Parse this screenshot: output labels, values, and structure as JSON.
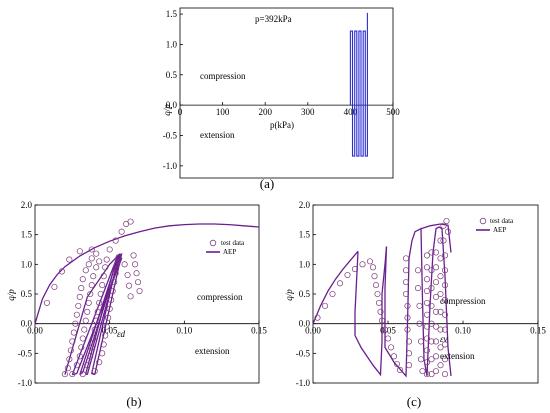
{
  "colors": {
    "path": "#2b2bd6",
    "model": "#6a1f8f",
    "marker": "#7a3a7a",
    "axis": "#000000"
  },
  "panels": {
    "a": {
      "label": "(a)",
      "title": "p=392kPa",
      "compression": "compression",
      "extension": "extension",
      "ylabel": "q/p",
      "xlabel": "p(kPa)"
    },
    "b": {
      "label": "(b)",
      "compression": "compression",
      "extension": "extension",
      "ylabel": "q/p",
      "strain_label": "εd",
      "legend": {
        "test": "test data",
        "model": "AEP"
      }
    },
    "c": {
      "label": "(c)",
      "compression": "compression",
      "extension": "extension",
      "ylabel": "q/p",
      "strain_label": "εv",
      "legend": {
        "test": "test data",
        "model": "AEP"
      }
    }
  },
  "chart_data": [
    {
      "id": "a",
      "type": "line",
      "title": "p=392kPa",
      "xlabel": "p(kPa)",
      "ylabel": "q/p",
      "xlim": [
        0,
        500
      ],
      "ylim": [
        -1.2,
        1.6
      ],
      "xticks": [
        0,
        100,
        200,
        300,
        400,
        500
      ],
      "yticks": [
        -1.0,
        -0.5,
        0.0,
        0.5,
        1.0,
        1.5
      ],
      "series": [
        {
          "x": [
            400,
            400,
            405,
            405,
            410,
            410,
            415,
            415,
            420,
            420,
            425,
            425,
            430,
            430,
            435,
            435,
            440,
            440
          ],
          "y": [
            0,
            1.22,
            1.22,
            -0.84,
            -0.84,
            1.22,
            1.22,
            -0.84,
            -0.84,
            1.22,
            1.22,
            -0.84,
            -0.84,
            1.22,
            1.22,
            -0.84,
            -0.84,
            1.52
          ]
        }
      ]
    },
    {
      "id": "b",
      "type": "scatter",
      "xlabel": "εd",
      "ylabel": "q/p",
      "xlim": [
        0,
        0.15
      ],
      "ylim": [
        -1.0,
        2.0
      ],
      "xticks": [
        0.0,
        0.05,
        0.1,
        0.15
      ],
      "yticks": [
        -1.0,
        -0.5,
        0.0,
        0.5,
        1.0,
        1.5,
        2.0
      ],
      "legend": [
        "test data",
        "AEP"
      ],
      "series": [
        {
          "name": "test data",
          "points": [
            [
              0.02,
              -0.85
            ],
            [
              0.022,
              -0.75
            ],
            [
              0.023,
              -0.6
            ],
            [
              0.024,
              -0.45
            ],
            [
              0.025,
              -0.3
            ],
            [
              0.026,
              -0.15
            ],
            [
              0.027,
              0.0
            ],
            [
              0.028,
              0.15
            ],
            [
              0.029,
              0.3
            ],
            [
              0.03,
              0.45
            ],
            [
              0.031,
              0.6
            ],
            [
              0.032,
              0.75
            ],
            [
              0.034,
              0.9
            ],
            [
              0.036,
              1.0
            ],
            [
              0.038,
              1.1
            ],
            [
              0.041,
              1.18
            ],
            [
              0.025,
              -0.85
            ],
            [
              0.028,
              -0.7
            ],
            [
              0.03,
              -0.55
            ],
            [
              0.031,
              -0.4
            ],
            [
              0.032,
              -0.25
            ],
            [
              0.033,
              -0.1
            ],
            [
              0.034,
              0.05
            ],
            [
              0.035,
              0.2
            ],
            [
              0.036,
              0.35
            ],
            [
              0.037,
              0.5
            ],
            [
              0.038,
              0.65
            ],
            [
              0.039,
              0.8
            ],
            [
              0.041,
              0.95
            ],
            [
              0.043,
              1.05
            ],
            [
              0.032,
              -0.85
            ],
            [
              0.035,
              -0.7
            ],
            [
              0.037,
              -0.55
            ],
            [
              0.038,
              -0.4
            ],
            [
              0.039,
              -0.25
            ],
            [
              0.04,
              -0.1
            ],
            [
              0.041,
              0.05
            ],
            [
              0.042,
              0.2
            ],
            [
              0.043,
              0.35
            ],
            [
              0.044,
              0.5
            ],
            [
              0.045,
              0.65
            ],
            [
              0.046,
              0.8
            ],
            [
              0.047,
              0.95
            ],
            [
              0.048,
              1.08
            ],
            [
              0.04,
              -0.8
            ],
            [
              0.043,
              -0.65
            ],
            [
              0.045,
              -0.5
            ],
            [
              0.046,
              -0.35
            ],
            [
              0.047,
              -0.2
            ],
            [
              0.048,
              -0.05
            ],
            [
              0.049,
              0.1
            ],
            [
              0.05,
              0.25
            ],
            [
              0.051,
              0.4
            ],
            [
              0.052,
              0.55
            ],
            [
              0.053,
              0.7
            ],
            [
              0.054,
              0.85
            ],
            [
              0.055,
              1.0
            ],
            [
              0.056,
              1.12
            ],
            [
              0.05,
              1.25
            ],
            [
              0.054,
              1.4
            ],
            [
              0.058,
              1.55
            ],
            [
              0.061,
              1.68
            ],
            [
              0.064,
              1.72
            ],
            [
              0.066,
              1.15
            ],
            [
              0.067,
              1.0
            ],
            [
              0.068,
              0.85
            ],
            [
              0.069,
              0.7
            ],
            [
              0.07,
              0.55
            ],
            [
              0.008,
              0.35
            ],
            [
              0.013,
              0.62
            ],
            [
              0.018,
              0.88
            ],
            [
              0.023,
              1.08
            ],
            [
              0.03,
              1.22
            ],
            [
              0.038,
              1.25
            ],
            [
              0.06,
              1.0
            ],
            [
              0.062,
              0.82
            ],
            [
              0.063,
              0.64
            ],
            [
              0.064,
              0.46
            ]
          ]
        },
        {
          "name": "AEP",
          "curves": [
            {
              "x": [
                0.0,
                0.005,
                0.01,
                0.015,
                0.02,
                0.03,
                0.04,
                0.05,
                0.06,
                0.07,
                0.08,
                0.09,
                0.1,
                0.11,
                0.12,
                0.13,
                0.14,
                0.15
              ],
              "y": [
                0.0,
                0.42,
                0.66,
                0.83,
                0.96,
                1.14,
                1.28,
                1.39,
                1.48,
                1.55,
                1.61,
                1.65,
                1.67,
                1.68,
                1.68,
                1.67,
                1.65,
                1.63
              ]
            },
            {
              "x": [
                0.025,
                0.055,
                0.058,
                0.028,
                0.025
              ],
              "y": [
                -0.86,
                1.12,
                1.1,
                -0.84,
                -0.86
              ]
            },
            {
              "x": [
                0.03,
                0.056,
                0.057,
                0.032,
                0.03
              ],
              "y": [
                -0.86,
                1.15,
                1.12,
                -0.82,
                -0.86
              ]
            },
            {
              "x": [
                0.035,
                0.057,
                0.055,
                0.034,
                0.035
              ],
              "y": [
                -0.86,
                1.16,
                1.13,
                -0.84,
                -0.86
              ]
            },
            {
              "x": [
                0.04,
                0.058,
                0.056,
                0.038,
                0.04
              ],
              "y": [
                -0.86,
                1.17,
                1.15,
                -0.84,
                -0.86
              ]
            },
            {
              "x": [
                0.02,
                0.035,
                0.05,
                0.057
              ],
              "y": [
                -0.86,
                0.45,
                1.0,
                1.18
              ]
            }
          ]
        }
      ]
    },
    {
      "id": "c",
      "type": "scatter",
      "xlabel": "εv",
      "ylabel": "q/p",
      "xlim": [
        0,
        0.15
      ],
      "ylim": [
        -1.0,
        2.0
      ],
      "xticks": [
        0.0,
        0.05,
        0.1,
        0.15
      ],
      "yticks": [
        -1.0,
        -0.5,
        0.0,
        0.5,
        1.0,
        1.5,
        2.0
      ],
      "legend": [
        "test data",
        "AEP"
      ],
      "series": [
        {
          "name": "test data",
          "points": [
            [
              0.003,
              0.1
            ],
            [
              0.008,
              0.3
            ],
            [
              0.013,
              0.5
            ],
            [
              0.018,
              0.68
            ],
            [
              0.023,
              0.82
            ],
            [
              0.028,
              0.92
            ],
            [
              0.033,
              1.0
            ],
            [
              0.038,
              1.05
            ],
            [
              0.04,
              0.95
            ],
            [
              0.041,
              0.8
            ],
            [
              0.042,
              0.65
            ],
            [
              0.043,
              0.5
            ],
            [
              0.044,
              0.35
            ],
            [
              0.045,
              0.2
            ],
            [
              0.046,
              0.05
            ],
            [
              0.048,
              -0.1
            ],
            [
              0.05,
              -0.25
            ],
            [
              0.052,
              -0.4
            ],
            [
              0.054,
              -0.55
            ],
            [
              0.056,
              -0.68
            ],
            [
              0.058,
              -0.78
            ],
            [
              0.062,
              1.1
            ],
            [
              0.062,
              0.9
            ],
            [
              0.062,
              0.7
            ],
            [
              0.062,
              0.5
            ],
            [
              0.063,
              0.3
            ],
            [
              0.063,
              0.1
            ],
            [
              0.063,
              -0.1
            ],
            [
              0.064,
              -0.3
            ],
            [
              0.064,
              -0.5
            ],
            [
              0.064,
              -0.7
            ],
            [
              0.07,
              0.9
            ],
            [
              0.07,
              0.6
            ],
            [
              0.071,
              0.3
            ],
            [
              0.071,
              0.0
            ],
            [
              0.072,
              -0.3
            ],
            [
              0.072,
              -0.6
            ],
            [
              0.073,
              -0.8
            ],
            [
              0.076,
              1.15
            ],
            [
              0.076,
              0.95
            ],
            [
              0.076,
              0.75
            ],
            [
              0.076,
              0.55
            ],
            [
              0.076,
              0.35
            ],
            [
              0.076,
              0.15
            ],
            [
              0.076,
              -0.05
            ],
            [
              0.076,
              -0.25
            ],
            [
              0.076,
              -0.45
            ],
            [
              0.076,
              -0.65
            ],
            [
              0.076,
              -0.85
            ],
            [
              0.079,
              1.2
            ],
            [
              0.079,
              0.9
            ],
            [
              0.079,
              0.6
            ],
            [
              0.079,
              0.3
            ],
            [
              0.079,
              0.0
            ],
            [
              0.079,
              -0.3
            ],
            [
              0.079,
              -0.6
            ],
            [
              0.079,
              -0.85
            ],
            [
              0.082,
              1.2
            ],
            [
              0.082,
              0.95
            ],
            [
              0.082,
              0.7
            ],
            [
              0.082,
              0.45
            ],
            [
              0.082,
              0.2
            ],
            [
              0.082,
              -0.05
            ],
            [
              0.082,
              -0.3
            ],
            [
              0.082,
              -0.55
            ],
            [
              0.082,
              -0.8
            ],
            [
              0.085,
              1.4
            ],
            [
              0.085,
              1.1
            ],
            [
              0.085,
              0.8
            ],
            [
              0.085,
              0.5
            ],
            [
              0.085,
              0.2
            ],
            [
              0.085,
              -0.1
            ],
            [
              0.085,
              -0.4
            ],
            [
              0.085,
              -0.7
            ],
            [
              0.087,
              1.65
            ],
            [
              0.087,
              1.4
            ],
            [
              0.088,
              1.15
            ],
            [
              0.088,
              0.9
            ],
            [
              0.088,
              0.65
            ],
            [
              0.088,
              0.4
            ],
            [
              0.088,
              0.15
            ],
            [
              0.088,
              -0.1
            ],
            [
              0.088,
              -0.35
            ],
            [
              0.088,
              -0.6
            ],
            [
              0.088,
              -0.85
            ],
            [
              0.089,
              1.73
            ],
            [
              0.09,
              1.55
            ]
          ]
        },
        {
          "name": "AEP",
          "curves": [
            {
              "x": [
                0.0,
                0.005,
                0.01,
                0.015,
                0.02,
                0.025,
                0.03
              ],
              "y": [
                0.0,
                0.3,
                0.55,
                0.75,
                0.92,
                1.07,
                1.22
              ]
            },
            {
              "x": [
                0.03,
                0.029,
                0.028,
                0.028,
                0.032,
                0.04,
                0.045,
                0.046,
                0.046
              ],
              "y": [
                1.22,
                0.7,
                0.2,
                -0.2,
                -0.4,
                -0.7,
                -0.86,
                -0.3,
                0.5
              ]
            },
            {
              "x": [
                0.046,
                0.048,
                0.049
              ],
              "y": [
                0.5,
                1.0,
                1.3
              ]
            },
            {
              "x": [
                0.049,
                0.048,
                0.048,
                0.054,
                0.062,
                0.063,
                0.064
              ],
              "y": [
                1.3,
                0.6,
                -0.4,
                -0.65,
                -0.88,
                0.0,
                1.1
              ]
            },
            {
              "x": [
                0.064,
                0.066,
                0.068,
                0.072,
                0.073,
                0.074,
                0.076,
                0.078,
                0.08,
                0.082,
                0.084,
                0.086,
                0.088,
                0.09,
                0.092
              ],
              "y": [
                1.1,
                1.4,
                1.55,
                1.6,
                0.4,
                -0.6,
                -0.88,
                0.3,
                1.2,
                1.6,
                1.63,
                1.6,
                0.8,
                -0.4,
                -0.88
              ]
            },
            {
              "x": [
                0.072,
                0.078,
                0.085,
                0.09,
                0.092
              ],
              "y": [
                1.6,
                1.65,
                1.68,
                1.66,
                1.2
              ]
            }
          ]
        }
      ]
    }
  ]
}
